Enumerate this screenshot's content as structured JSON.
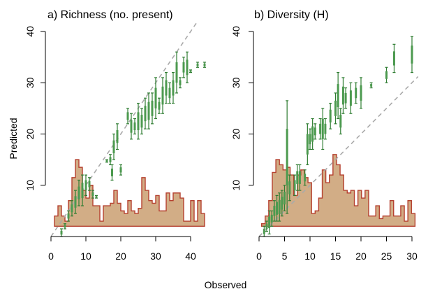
{
  "figure": {
    "ylabel": "Predicted",
    "xlabel": "Observed"
  },
  "chart_data": [
    {
      "type": "range",
      "panel": "a",
      "title": "a) Richness (no. present)",
      "xlim": [
        0,
        45
      ],
      "ylim": [
        0,
        42
      ],
      "xticks": [
        0,
        10,
        20,
        30,
        40
      ],
      "yticks": [
        10,
        20,
        30,
        40
      ],
      "reference_line": "y = x (dashed grey)",
      "histogram": {
        "bin_width": 1,
        "start": 1,
        "heights_in_y_units": [
          2,
          4,
          2,
          1,
          5,
          9.5,
          13,
          11.5,
          7,
          5.5,
          8,
          4,
          4,
          1,
          4,
          4,
          4.5,
          7,
          4.5,
          3,
          2.5,
          5,
          3,
          2.5,
          3.5,
          9.5,
          7,
          5,
          4.5,
          6,
          3,
          3,
          6.5,
          5,
          6.5,
          6.5,
          5.5,
          1,
          1,
          5,
          1,
          5,
          2.5
        ]
      },
      "points": [
        {
          "x": 3,
          "lo": 0,
          "hi": 1.5
        },
        {
          "x": 4,
          "lo": 1.5,
          "hi": 2.5
        },
        {
          "x": 5,
          "lo": 3,
          "hi": 5
        },
        {
          "x": 6,
          "lo": 4,
          "hi": 7
        },
        {
          "x": 7,
          "lo": 4.5,
          "hi": 9
        },
        {
          "x": 8,
          "lo": 6,
          "hi": 11
        },
        {
          "x": 9,
          "lo": 6,
          "hi": 12
        },
        {
          "x": 10,
          "lo": 8,
          "hi": 12
        },
        {
          "x": 11,
          "lo": 9,
          "hi": 11.5
        },
        {
          "x": 12,
          "lo": 7.5,
          "hi": 9
        },
        {
          "x": 13,
          "lo": 7.5,
          "hi": 8
        },
        {
          "x": 16,
          "lo": 14.5,
          "hi": 15
        },
        {
          "x": 17,
          "lo": 14,
          "hi": 16
        },
        {
          "x": 17.5,
          "lo": 11,
          "hi": 14
        },
        {
          "x": 18,
          "lo": 15,
          "hi": 20
        },
        {
          "x": 19,
          "lo": 17,
          "hi": 22
        },
        {
          "x": 20,
          "lo": 12,
          "hi": 14
        },
        {
          "x": 22,
          "lo": 22,
          "hi": 25
        },
        {
          "x": 23,
          "lo": 19,
          "hi": 24
        },
        {
          "x": 24,
          "lo": 20,
          "hi": 23
        },
        {
          "x": 25,
          "lo": 19,
          "hi": 26
        },
        {
          "x": 26,
          "lo": 20,
          "hi": 25
        },
        {
          "x": 27,
          "lo": 21,
          "hi": 27
        },
        {
          "x": 28,
          "lo": 21,
          "hi": 28
        },
        {
          "x": 29,
          "lo": 22,
          "hi": 28
        },
        {
          "x": 30,
          "lo": 23,
          "hi": 31
        },
        {
          "x": 31,
          "lo": 24,
          "hi": 27
        },
        {
          "x": 32,
          "lo": 24,
          "hi": 31
        },
        {
          "x": 33,
          "lo": 26,
          "hi": 32
        },
        {
          "x": 34,
          "lo": 26,
          "hi": 30
        },
        {
          "x": 35,
          "lo": 26,
          "hi": 32
        },
        {
          "x": 36,
          "lo": 28,
          "hi": 36
        },
        {
          "x": 37,
          "lo": 29,
          "hi": 31
        },
        {
          "x": 38,
          "lo": 31,
          "hi": 35
        },
        {
          "x": 39,
          "lo": 30,
          "hi": 36
        },
        {
          "x": 40,
          "lo": 32,
          "hi": 32.5
        },
        {
          "x": 42,
          "lo": 33,
          "hi": 34
        },
        {
          "x": 44,
          "lo": 33,
          "hi": 34
        }
      ]
    },
    {
      "type": "range",
      "panel": "b",
      "title": "b) Diversity (H)",
      "xlim": [
        0,
        31
      ],
      "ylim": [
        0,
        42
      ],
      "xticks": [
        0,
        5,
        10,
        15,
        20,
        25,
        30
      ],
      "yticks": [
        10,
        20,
        30,
        40
      ],
      "reference_line": "y = x (dashed grey)",
      "histogram": {
        "bin_width": 0.7,
        "start": 0.5,
        "heights_in_y_units": [
          0.5,
          2,
          5,
          10.5,
          13,
          12,
          11,
          11.5,
          10,
          6,
          10,
          11,
          9.5,
          8.5,
          2.5,
          3,
          5.5,
          11,
          8.5,
          10,
          14,
          12,
          10,
          7,
          6.5,
          7,
          4,
          7,
          5.5,
          7,
          2,
          2,
          4,
          1.5,
          2,
          2,
          5,
          2,
          2,
          4,
          1,
          5,
          2.5
        ]
      },
      "points": [
        {
          "x": 1,
          "lo": 0,
          "hi": 2
        },
        {
          "x": 1.5,
          "lo": 1,
          "hi": 3
        },
        {
          "x": 2,
          "lo": 0.5,
          "hi": 5
        },
        {
          "x": 2.5,
          "lo": 2,
          "hi": 5
        },
        {
          "x": 3,
          "lo": 3,
          "hi": 7
        },
        {
          "x": 3.5,
          "lo": 3,
          "hi": 8
        },
        {
          "x": 4,
          "lo": 3,
          "hi": 8.5
        },
        {
          "x": 4.5,
          "lo": 4,
          "hi": 9
        },
        {
          "x": 5,
          "lo": 5,
          "hi": 10
        },
        {
          "x": 5.5,
          "lo": 4.5,
          "hi": 26.5
        },
        {
          "x": 6,
          "lo": 7,
          "hi": 12
        },
        {
          "x": 7,
          "lo": 8,
          "hi": 12
        },
        {
          "x": 7.5,
          "lo": 9,
          "hi": 14
        },
        {
          "x": 8,
          "lo": 9,
          "hi": 14
        },
        {
          "x": 9,
          "lo": 10,
          "hi": 13
        },
        {
          "x": 9.5,
          "lo": 14,
          "hi": 22
        },
        {
          "x": 10,
          "lo": 17,
          "hi": 21
        },
        {
          "x": 10.5,
          "lo": 17,
          "hi": 23
        },
        {
          "x": 11,
          "lo": 19,
          "hi": 22
        },
        {
          "x": 12,
          "lo": 19,
          "hi": 23
        },
        {
          "x": 12.5,
          "lo": 17,
          "hi": 25
        },
        {
          "x": 13,
          "lo": 19,
          "hi": 23
        },
        {
          "x": 14,
          "lo": 21,
          "hi": 26
        },
        {
          "x": 15,
          "lo": 22,
          "hi": 28
        },
        {
          "x": 15.5,
          "lo": 23,
          "hi": 32
        },
        {
          "x": 16,
          "lo": 20,
          "hi": 25
        },
        {
          "x": 16.5,
          "lo": 24,
          "hi": 31
        },
        {
          "x": 17,
          "lo": 25,
          "hi": 29
        },
        {
          "x": 18,
          "lo": 24,
          "hi": 30
        },
        {
          "x": 19,
          "lo": 26,
          "hi": 30
        },
        {
          "x": 20,
          "lo": 25,
          "hi": 31
        },
        {
          "x": 22,
          "lo": 29,
          "hi": 30
        },
        {
          "x": 25,
          "lo": 30,
          "hi": 33
        },
        {
          "x": 26.5,
          "lo": 32,
          "hi": 37.5
        },
        {
          "x": 30,
          "lo": 32,
          "hi": 39
        }
      ]
    }
  ]
}
